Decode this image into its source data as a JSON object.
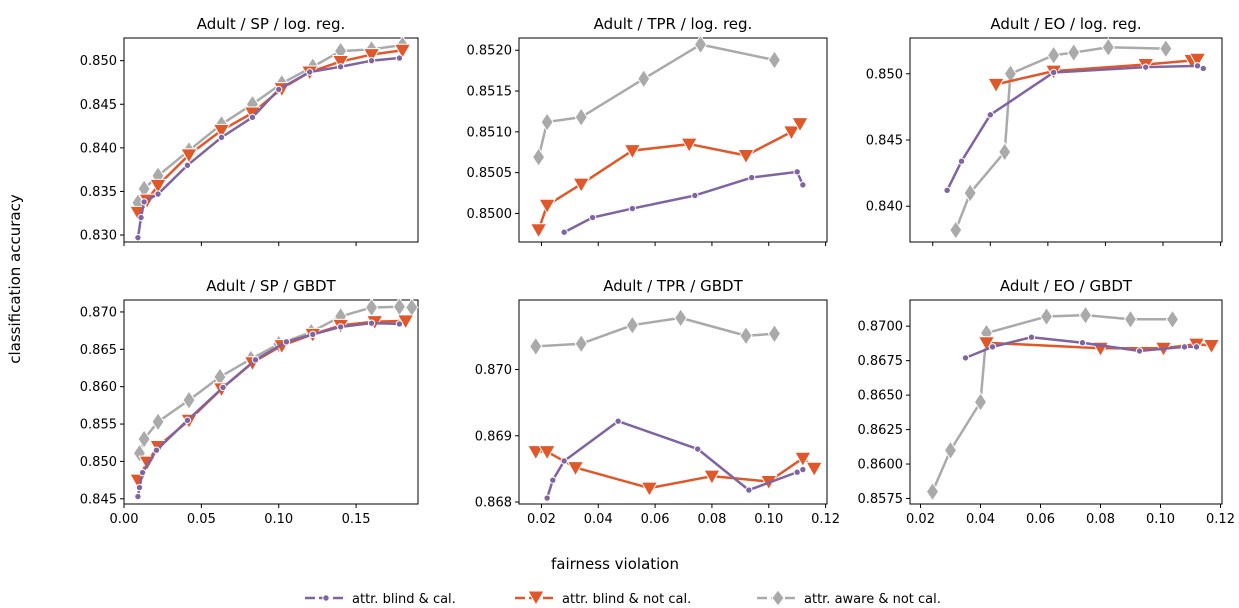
{
  "figure": {
    "xlabel": "fairness violation",
    "ylabel": "classification accuracy"
  },
  "legend": [
    {
      "label": "attr. blind & cal.",
      "color": "#8064a2",
      "marker": "circle"
    },
    {
      "label": "attr. blind & not cal.",
      "color": "#e0582a",
      "marker": "triangle-down"
    },
    {
      "label": "attr. aware & not cal.",
      "color": "#aaaaaa",
      "marker": "diamond"
    }
  ],
  "chart_data": [
    {
      "type": "line",
      "title": "Adult / SP / log. reg.",
      "xlim": [
        0.0,
        0.19
      ],
      "ylim": [
        0.8292,
        0.8526
      ],
      "xticks": [
        0.0,
        0.05,
        0.1,
        0.15
      ],
      "xtick_labels": [],
      "yticks": [
        0.83,
        0.835,
        0.84,
        0.845,
        0.85
      ],
      "ytick_labels": [
        "0.830",
        "0.835",
        "0.840",
        "0.845",
        "0.850"
      ],
      "series": [
        {
          "x": [
            0.009,
            0.011,
            0.013,
            0.022,
            0.041,
            0.063,
            0.083,
            0.1,
            0.12,
            0.14,
            0.16,
            0.178
          ],
          "y": [
            0.8297,
            0.832,
            0.8338,
            0.8347,
            0.838,
            0.8412,
            0.8435,
            0.8467,
            0.8487,
            0.8493,
            0.85,
            0.8503
          ]
        },
        {
          "x": [
            0.009,
            0.015,
            0.022,
            0.042,
            0.063,
            0.083,
            0.102,
            0.12,
            0.14,
            0.16,
            0.18
          ],
          "y": [
            0.8326,
            0.834,
            0.8357,
            0.8392,
            0.842,
            0.844,
            0.8468,
            0.8487,
            0.8499,
            0.8507,
            0.8512
          ]
        },
        {
          "x": [
            0.009,
            0.013,
            0.022,
            0.042,
            0.063,
            0.083,
            0.102,
            0.122,
            0.14,
            0.16,
            0.18
          ],
          "y": [
            0.8337,
            0.8353,
            0.8368,
            0.8397,
            0.8427,
            0.845,
            0.8474,
            0.8493,
            0.8511,
            0.8513,
            0.8518
          ]
        }
      ]
    },
    {
      "type": "line",
      "title": "Adult / TPR / log. reg.",
      "xlim": [
        0.0121,
        0.1205
      ],
      "ylim": [
        0.84965,
        0.85215
      ],
      "xticks": [
        0.02,
        0.04,
        0.06,
        0.08,
        0.1,
        0.12
      ],
      "xtick_labels": [],
      "yticks": [
        0.85,
        0.8505,
        0.851,
        0.8515,
        0.852
      ],
      "ytick_labels": [
        "0.8500",
        "0.8505",
        "0.8510",
        "0.8515",
        "0.8520"
      ],
      "series": [
        {
          "x": [
            0.028,
            0.038,
            0.052,
            0.074,
            0.094,
            0.11,
            0.112
          ],
          "y": [
            0.84977,
            0.84995,
            0.85006,
            0.85022,
            0.85044,
            0.85051,
            0.85035
          ]
        },
        {
          "x": [
            0.019,
            0.022,
            0.034,
            0.052,
            0.072,
            0.092,
            0.108,
            0.111
          ],
          "y": [
            0.8498,
            0.8501,
            0.85036,
            0.85077,
            0.85085,
            0.85071,
            0.851,
            0.8511
          ]
        },
        {
          "x": [
            0.019,
            0.022,
            0.034,
            0.056,
            0.076,
            0.102
          ],
          "y": [
            0.85069,
            0.85112,
            0.85118,
            0.85165,
            0.85207,
            0.85188
          ]
        }
      ]
    },
    {
      "type": "line",
      "title": "Adult / EO / log. reg.",
      "xlim": [
        0.0121,
        0.1205
      ],
      "ylim": [
        0.8373,
        0.8527
      ],
      "xticks": [
        0.02,
        0.04,
        0.06,
        0.08,
        0.1,
        0.12
      ],
      "xtick_labels": [],
      "yticks": [
        0.84,
        0.845,
        0.85
      ],
      "ytick_labels": [
        "0.840",
        "0.845",
        "0.850"
      ],
      "series": [
        {
          "x": [
            0.025,
            0.03,
            0.04,
            0.062,
            0.094,
            0.112,
            0.114
          ],
          "y": [
            0.8412,
            0.8434,
            0.8469,
            0.8501,
            0.8505,
            0.8506,
            0.8504
          ]
        },
        {
          "x": [
            0.042,
            0.062,
            0.094,
            0.11,
            0.112
          ],
          "y": [
            0.8492,
            0.8502,
            0.8507,
            0.851,
            0.8511
          ]
        },
        {
          "x": [
            0.028,
            0.033,
            0.045,
            0.047,
            0.062,
            0.069,
            0.081,
            0.101
          ],
          "y": [
            0.8382,
            0.841,
            0.8441,
            0.85,
            0.8514,
            0.8516,
            0.852,
            0.8519
          ]
        }
      ]
    },
    {
      "type": "line",
      "title": "Adult / SP / GBDT",
      "xlim": [
        0.0,
        0.19
      ],
      "ylim": [
        0.8443,
        0.8716
      ],
      "xticks": [
        0.0,
        0.05,
        0.1,
        0.15
      ],
      "xtick_labels": [
        "0.00",
        "0.05",
        "0.10",
        "0.15"
      ],
      "yticks": [
        0.845,
        0.85,
        0.855,
        0.86,
        0.865,
        0.87
      ],
      "ytick_labels": [
        "0.845",
        "0.850",
        "0.855",
        "0.860",
        "0.865",
        "0.870"
      ],
      "series": [
        {
          "x": [
            0.009,
            0.01,
            0.012,
            0.021,
            0.041,
            0.064,
            0.085,
            0.105,
            0.122,
            0.14,
            0.16,
            0.178
          ],
          "y": [
            0.8453,
            0.8465,
            0.8485,
            0.8515,
            0.8555,
            0.8599,
            0.8636,
            0.866,
            0.867,
            0.868,
            0.8685,
            0.8684
          ]
        },
        {
          "x": [
            0.009,
            0.015,
            0.022,
            0.042,
            0.063,
            0.083,
            0.102,
            0.122,
            0.14,
            0.162,
            0.182
          ],
          "y": [
            0.8475,
            0.8499,
            0.852,
            0.8555,
            0.8597,
            0.8632,
            0.8655,
            0.867,
            0.8682,
            0.8687,
            0.8688
          ]
        },
        {
          "x": [
            0.01,
            0.013,
            0.022,
            0.042,
            0.062,
            0.082,
            0.1,
            0.121,
            0.14,
            0.16,
            0.178,
            0.186
          ],
          "y": [
            0.8511,
            0.853,
            0.8553,
            0.8582,
            0.8613,
            0.8637,
            0.8657,
            0.8673,
            0.8694,
            0.8706,
            0.8707,
            0.8706
          ]
        }
      ]
    },
    {
      "type": "line",
      "title": "Adult / TPR / GBDT",
      "xlim": [
        0.0121,
        0.1205
      ],
      "ylim": [
        0.86797,
        0.87105
      ],
      "xticks": [
        0.02,
        0.04,
        0.06,
        0.08,
        0.1,
        0.12
      ],
      "xtick_labels": [
        "0.02",
        "0.04",
        "0.06",
        "0.08",
        "0.10",
        "0.12"
      ],
      "yticks": [
        0.868,
        0.869,
        0.87
      ],
      "ytick_labels": [
        "0.868",
        "0.869",
        "0.870"
      ],
      "series": [
        {
          "x": [
            0.022,
            0.024,
            0.028,
            0.047,
            0.075,
            0.093,
            0.11,
            0.112
          ],
          "y": [
            0.86806,
            0.86833,
            0.86862,
            0.86922,
            0.8688,
            0.86818,
            0.86845,
            0.86849
          ]
        },
        {
          "x": [
            0.018,
            0.022,
            0.032,
            0.058,
            0.08,
            0.1,
            0.112,
            0.116
          ],
          "y": [
            0.86876,
            0.86876,
            0.86852,
            0.86821,
            0.86839,
            0.86831,
            0.86866,
            0.86851
          ]
        },
        {
          "x": [
            0.018,
            0.034,
            0.052,
            0.069,
            0.092,
            0.102
          ],
          "y": [
            0.87035,
            0.87039,
            0.87067,
            0.87078,
            0.87051,
            0.87054
          ]
        }
      ]
    },
    {
      "type": "line",
      "title": "Adult / EO / GBDT",
      "xlim": [
        0.0165,
        0.1205
      ],
      "ylim": [
        0.8571,
        0.8719
      ],
      "xticks": [
        0.02,
        0.04,
        0.06,
        0.08,
        0.1,
        0.12
      ],
      "xtick_labels": [
        "0.02",
        "0.04",
        "0.06",
        "0.08",
        "0.10",
        "0.12"
      ],
      "yticks": [
        0.8575,
        0.86,
        0.8625,
        0.865,
        0.8675,
        0.87
      ],
      "ytick_labels": [
        "0.8575",
        "0.8600",
        "0.8625",
        "0.8650",
        "0.8675",
        "0.8700"
      ],
      "series": [
        {
          "x": [
            0.035,
            0.044,
            0.057,
            0.074,
            0.093,
            0.108,
            0.112
          ],
          "y": [
            0.8677,
            0.8685,
            0.8692,
            0.8688,
            0.8682,
            0.8685,
            0.8685
          ]
        },
        {
          "x": [
            0.042,
            0.08,
            0.101,
            0.112,
            0.117
          ],
          "y": [
            0.8688,
            0.8684,
            0.8684,
            0.8687,
            0.8686
          ]
        },
        {
          "x": [
            0.024,
            0.03,
            0.04,
            0.042,
            0.062,
            0.075,
            0.09,
            0.104
          ],
          "y": [
            0.858,
            0.861,
            0.8645,
            0.8695,
            0.8707,
            0.8708,
            0.8705,
            0.8705
          ]
        }
      ]
    }
  ]
}
